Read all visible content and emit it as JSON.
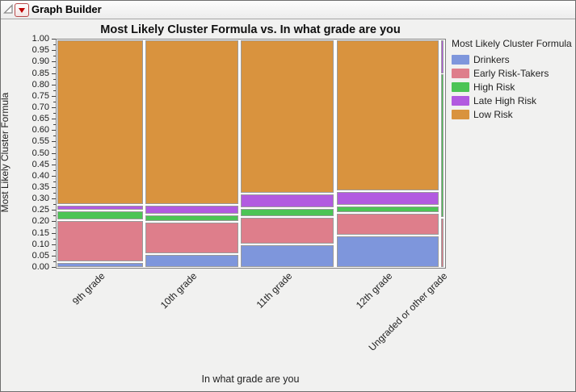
{
  "window": {
    "title": "Graph Builder"
  },
  "icons": {
    "disclosure": "disclosure-triangle-icon",
    "menu": "red-triangle-menu-icon"
  },
  "chart_data": {
    "type": "mosaic",
    "title": "Most Likely Cluster Formula vs. In what grade are you",
    "xlabel": "In what grade are you",
    "ylabel": "Most Likely Cluster Formula",
    "ylim": [
      0,
      1
    ],
    "ytick_labels": [
      "1.00",
      "0.95",
      "0.90",
      "0.85",
      "0.80",
      "0.75",
      "0.70",
      "0.65",
      "0.60",
      "0.55",
      "0.50",
      "0.45",
      "0.40",
      "0.35",
      "0.30",
      "0.25",
      "0.20",
      "0.15",
      "0.10",
      "0.05",
      "0.00"
    ],
    "ytick_step": 0.05,
    "grid": false,
    "legend_position": "right",
    "legend_title": "Most Likely Cluster Formula",
    "series": [
      {
        "name": "Drinkers",
        "color": "#7E96DC"
      },
      {
        "name": "Early Risk-Takers",
        "color": "#DE7E8B"
      },
      {
        "name": "High Risk",
        "color": "#4CC455"
      },
      {
        "name": "Late High Risk",
        "color": "#B25AE0"
      },
      {
        "name": "Low Risk",
        "color": "#D9933E"
      }
    ],
    "categories": [
      "9th grade",
      "10th grade",
      "11th grade",
      "12th grade",
      "Ungraded or other grade"
    ],
    "column_widths": [
      0.228,
      0.246,
      0.248,
      0.272,
      0.006
    ],
    "columns": [
      {
        "category": "9th grade",
        "proportions": [
          0.025,
          0.185,
          0.04,
          0.025,
          0.725
        ]
      },
      {
        "category": "10th grade",
        "proportions": [
          0.06,
          0.14,
          0.035,
          0.04,
          0.725
        ]
      },
      {
        "category": "11th grade",
        "proportions": [
          0.101,
          0.122,
          0.039,
          0.062,
          0.676
        ]
      },
      {
        "category": "12th grade",
        "proportions": [
          0.141,
          0.098,
          0.032,
          0.066,
          0.663
        ]
      },
      {
        "category": "Ungraded or other grade",
        "proportions": [
          0.0,
          0.22,
          0.63,
          0.15,
          0.0
        ]
      }
    ]
  }
}
